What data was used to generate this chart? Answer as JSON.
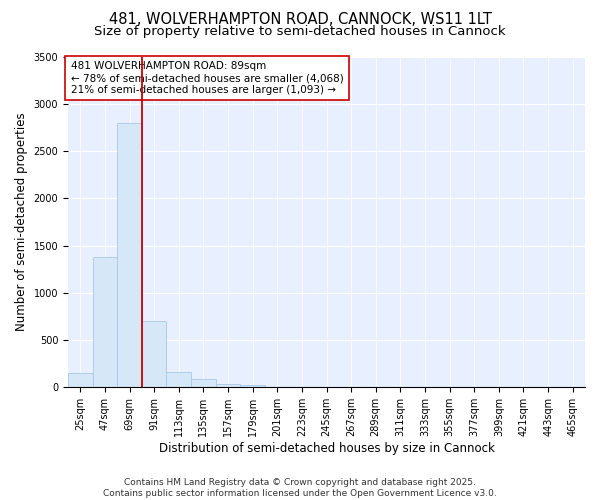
{
  "title_line1": "481, WOLVERHAMPTON ROAD, CANNOCK, WS11 1LT",
  "title_line2": "Size of property relative to semi-detached houses in Cannock",
  "xlabel": "Distribution of semi-detached houses by size in Cannock",
  "ylabel": "Number of semi-detached properties",
  "categories": [
    "25sqm",
    "47sqm",
    "69sqm",
    "91sqm",
    "113sqm",
    "135sqm",
    "157sqm",
    "179sqm",
    "201sqm",
    "223sqm",
    "245sqm",
    "267sqm",
    "289sqm",
    "311sqm",
    "333sqm",
    "355sqm",
    "377sqm",
    "399sqm",
    "421sqm",
    "443sqm",
    "465sqm"
  ],
  "values": [
    150,
    1375,
    2800,
    700,
    165,
    90,
    35,
    20,
    5,
    0,
    0,
    0,
    0,
    0,
    0,
    0,
    0,
    0,
    0,
    0,
    0
  ],
  "bar_color": "#d6e8f7",
  "bar_edge_color": "#a8c8e8",
  "vline_color": "#cc0000",
  "vline_x_index": 2.5,
  "annotation_text": "481 WOLVERHAMPTON ROAD: 89sqm\n← 78% of semi-detached houses are smaller (4,068)\n21% of semi-detached houses are larger (1,093) →",
  "annotation_box_color": "#ffffff",
  "annotation_box_edge": "#cc0000",
  "ylim": [
    0,
    3500
  ],
  "yticks": [
    0,
    500,
    1000,
    1500,
    2000,
    2500,
    3000,
    3500
  ],
  "fig_bg_color": "#ffffff",
  "plot_bg_color": "#e8f0ff",
  "grid_color": "#ffffff",
  "footer_line1": "Contains HM Land Registry data © Crown copyright and database right 2025.",
  "footer_line2": "Contains public sector information licensed under the Open Government Licence v3.0.",
  "title_fontsize": 10.5,
  "subtitle_fontsize": 9.5,
  "axis_label_fontsize": 8.5,
  "tick_fontsize": 7,
  "annotation_fontsize": 7.5,
  "footer_fontsize": 6.5
}
